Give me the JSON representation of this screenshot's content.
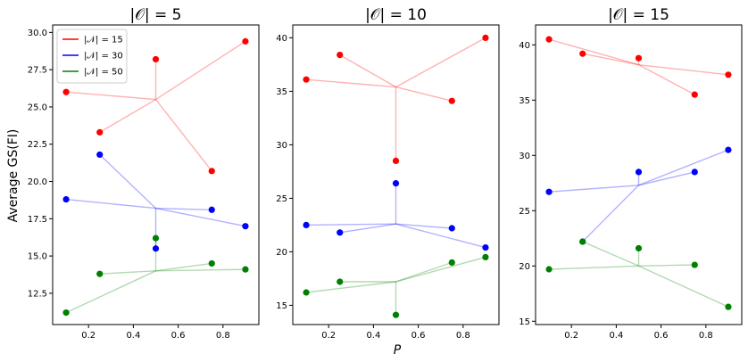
{
  "figure": {
    "ylabel": "Average GS(FI)",
    "xlabel": "P"
  },
  "legend": {
    "location": "upper-left of first panel",
    "entries": [
      {
        "label": "|N| = 15",
        "color": "#ff0000"
      },
      {
        "label": "|N| = 30",
        "color": "#0000ff"
      },
      {
        "label": "|N| = 50",
        "color": "#008000"
      }
    ]
  },
  "chart_data": [
    {
      "type": "scatter",
      "title": "|O| = 5",
      "xlim": [
        0.04,
        0.96
      ],
      "ylim": [
        10.4,
        30.5
      ],
      "xticks": [
        0.2,
        0.4,
        0.6,
        0.8
      ],
      "xtick_labels": [
        "0.2",
        "0.4",
        "0.6",
        "0.8"
      ],
      "yticks": [
        12.5,
        15.0,
        17.5,
        20.0,
        22.5,
        25.0,
        27.5,
        30.0
      ],
      "ytick_labels": [
        "12.5",
        "15.0",
        "17.5",
        "20.0",
        "22.5",
        "25.0",
        "27.5",
        "30.0"
      ],
      "series": [
        {
          "name": "|N| = 15",
          "color": "#ff0000",
          "center": [
            0.5,
            25.5
          ],
          "points": [
            [
              0.1,
              26.0
            ],
            [
              0.25,
              23.3
            ],
            [
              0.5,
              28.2
            ],
            [
              0.75,
              20.7
            ],
            [
              0.9,
              29.4
            ]
          ]
        },
        {
          "name": "|N| = 30",
          "color": "#0000ff",
          "center": [
            0.5,
            18.2
          ],
          "points": [
            [
              0.1,
              18.8
            ],
            [
              0.25,
              21.8
            ],
            [
              0.5,
              15.5
            ],
            [
              0.75,
              18.1
            ],
            [
              0.9,
              17.0
            ]
          ]
        },
        {
          "name": "|N| = 50",
          "color": "#008000",
          "center": [
            0.5,
            14.0
          ],
          "points": [
            [
              0.1,
              11.2
            ],
            [
              0.25,
              13.8
            ],
            [
              0.5,
              16.2
            ],
            [
              0.75,
              14.5
            ],
            [
              0.9,
              14.1
            ]
          ]
        }
      ]
    },
    {
      "type": "scatter",
      "title": "|O| = 10",
      "xlim": [
        0.04,
        0.96
      ],
      "ylim": [
        13.2,
        41.2
      ],
      "xticks": [
        0.2,
        0.4,
        0.6,
        0.8
      ],
      "xtick_labels": [
        "0.2",
        "0.4",
        "0.6",
        "0.8"
      ],
      "yticks": [
        15,
        20,
        25,
        30,
        35,
        40
      ],
      "ytick_labels": [
        "15",
        "20",
        "25",
        "30",
        "35",
        "40"
      ],
      "series": [
        {
          "name": "|N| = 15",
          "color": "#ff0000",
          "center": [
            0.5,
            35.4
          ],
          "points": [
            [
              0.1,
              36.1
            ],
            [
              0.25,
              38.4
            ],
            [
              0.5,
              28.5
            ],
            [
              0.75,
              34.1
            ],
            [
              0.9,
              40.0
            ]
          ]
        },
        {
          "name": "|N| = 30",
          "color": "#0000ff",
          "center": [
            0.5,
            22.6
          ],
          "points": [
            [
              0.1,
              22.5
            ],
            [
              0.25,
              21.8
            ],
            [
              0.5,
              26.4
            ],
            [
              0.75,
              22.2
            ],
            [
              0.9,
              20.4
            ]
          ]
        },
        {
          "name": "|N| = 50",
          "color": "#008000",
          "center": [
            0.5,
            17.2
          ],
          "points": [
            [
              0.1,
              16.2
            ],
            [
              0.25,
              17.2
            ],
            [
              0.5,
              14.1
            ],
            [
              0.75,
              19.0
            ],
            [
              0.9,
              19.5
            ]
          ]
        }
      ]
    },
    {
      "type": "scatter",
      "title": "|O| = 15",
      "xlim": [
        0.04,
        0.96
      ],
      "ylim": [
        14.7,
        41.8
      ],
      "xticks": [
        0.2,
        0.4,
        0.6,
        0.8
      ],
      "xtick_labels": [
        "0.2",
        "0.4",
        "0.6",
        "0.8"
      ],
      "yticks": [
        15,
        20,
        25,
        30,
        35,
        40
      ],
      "ytick_labels": [
        "15",
        "20",
        "25",
        "30",
        "35",
        "40"
      ],
      "series": [
        {
          "name": "|N| = 15",
          "color": "#ff0000",
          "center": [
            0.5,
            38.2
          ],
          "points": [
            [
              0.1,
              40.5
            ],
            [
              0.25,
              39.2
            ],
            [
              0.5,
              38.8
            ],
            [
              0.75,
              35.5
            ],
            [
              0.9,
              37.3
            ]
          ]
        },
        {
          "name": "|N| = 30",
          "color": "#0000ff",
          "center": [
            0.5,
            27.3
          ],
          "points": [
            [
              0.1,
              26.7
            ],
            [
              0.25,
              22.2
            ],
            [
              0.5,
              28.5
            ],
            [
              0.75,
              28.5
            ],
            [
              0.9,
              30.5
            ]
          ]
        },
        {
          "name": "|N| = 50",
          "color": "#008000",
          "center": [
            0.5,
            20.0
          ],
          "points": [
            [
              0.1,
              19.7
            ],
            [
              0.25,
              22.2
            ],
            [
              0.5,
              21.6
            ],
            [
              0.75,
              20.1
            ],
            [
              0.9,
              16.3
            ]
          ]
        }
      ]
    }
  ]
}
